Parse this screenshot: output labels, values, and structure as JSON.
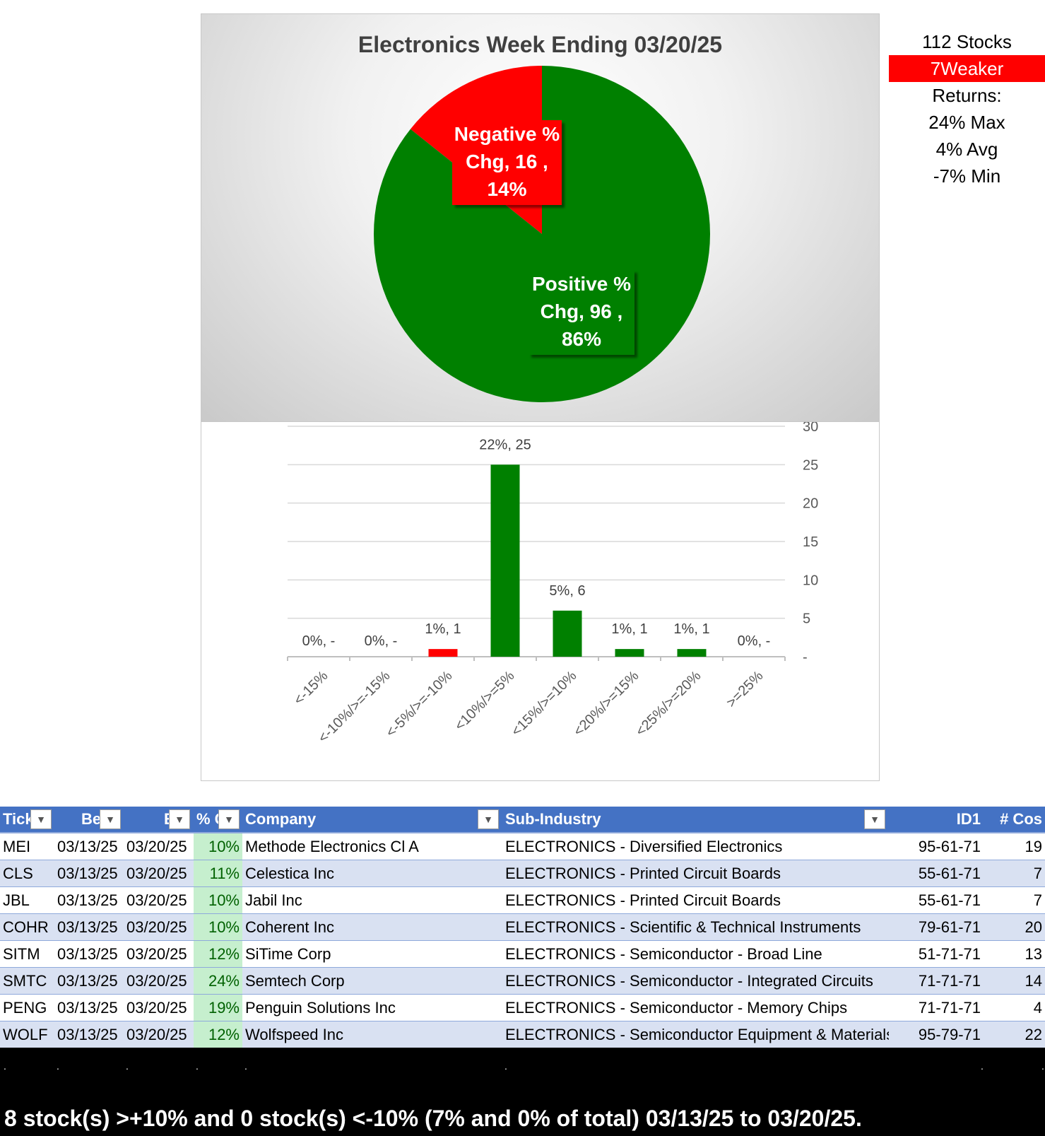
{
  "pie_chart": {
    "title": "Electronics Week Ending 03/20/25",
    "slices": [
      {
        "label_lines": [
          "Negative %",
          "Chg,  16 ,",
          "14%"
        ],
        "count": 16,
        "percent": 14,
        "color": "#ff0000"
      },
      {
        "label_lines": [
          "Positive %",
          "Chg,  96 ,",
          "86%"
        ],
        "count": 96,
        "percent": 86,
        "color": "#008000"
      }
    ]
  },
  "chart_data": {
    "type": "bar",
    "categories": [
      "<-15%",
      "<-10%/>=-15%",
      "<-5%/>=-10%",
      "<10%/>=5%",
      "<15%/>=10%",
      "<20%/>=15%",
      "<25%/>=20%",
      ">=25%"
    ],
    "values": [
      0,
      0,
      1,
      25,
      6,
      1,
      1,
      0
    ],
    "data_labels": [
      "0%,  -",
      "0%,  -",
      "1%,  1",
      "22%,  25",
      "5%,  6",
      "1%,  1",
      "1%,  1",
      "0%,  -"
    ],
    "colors": [
      "#008000",
      "#008000",
      "#ff0000",
      "#008000",
      "#008000",
      "#008000",
      "#008000",
      "#008000"
    ],
    "ylim": [
      0,
      30
    ],
    "yticks": [
      "-",
      "5",
      "10",
      "15",
      "20",
      "25",
      "30"
    ],
    "grid": true,
    "y_axis_side": "right"
  },
  "stats": {
    "stocks": "112 Stocks",
    "weaker": "7Weaker",
    "returns_label": "Returns:",
    "max": "24% Max",
    "avg": "4% Avg",
    "min": "-7% Min"
  },
  "table": {
    "headers": [
      "Tick",
      "Be",
      "E",
      "% C",
      "Company",
      "Sub-Industry",
      "ID1",
      "# Cos"
    ],
    "rows": [
      [
        "MEI",
        "03/13/25",
        "03/20/25",
        "10%",
        "Methode Electronics Cl A",
        "ELECTRONICS - Diversified Electronics",
        "95-61-71",
        "19"
      ],
      [
        "CLS",
        "03/13/25",
        "03/20/25",
        "11%",
        "Celestica Inc",
        "ELECTRONICS - Printed Circuit Boards",
        "55-61-71",
        "7"
      ],
      [
        "JBL",
        "03/13/25",
        "03/20/25",
        "10%",
        "Jabil Inc",
        "ELECTRONICS - Printed Circuit Boards",
        "55-61-71",
        "7"
      ],
      [
        "COHR",
        "03/13/25",
        "03/20/25",
        "10%",
        "Coherent Inc",
        "ELECTRONICS - Scientific & Technical Instruments",
        "79-61-71",
        "20"
      ],
      [
        "SITM",
        "03/13/25",
        "03/20/25",
        "12%",
        "SiTime Corp",
        "ELECTRONICS - Semiconductor - Broad Line",
        "51-71-71",
        "13"
      ],
      [
        "SMTC",
        "03/13/25",
        "03/20/25",
        "24%",
        "Semtech Corp",
        "ELECTRONICS - Semiconductor - Integrated Circuits",
        "71-71-71",
        "14"
      ],
      [
        "PENG",
        "03/13/25",
        "03/20/25",
        "19%",
        "Penguin Solutions Inc",
        "ELECTRONICS - Semiconductor - Memory Chips",
        "71-71-71",
        "4"
      ],
      [
        "WOLF",
        "03/13/25",
        "03/20/25",
        "12%",
        "Wolfspeed Inc",
        "ELECTRONICS - Semiconductor Equipment & Materials",
        "95-79-71",
        "22"
      ]
    ]
  },
  "footer": "8 stock(s) >+10% and 0 stock(s) <-10% (7% and 0% of total) 03/13/25 to 03/20/25."
}
